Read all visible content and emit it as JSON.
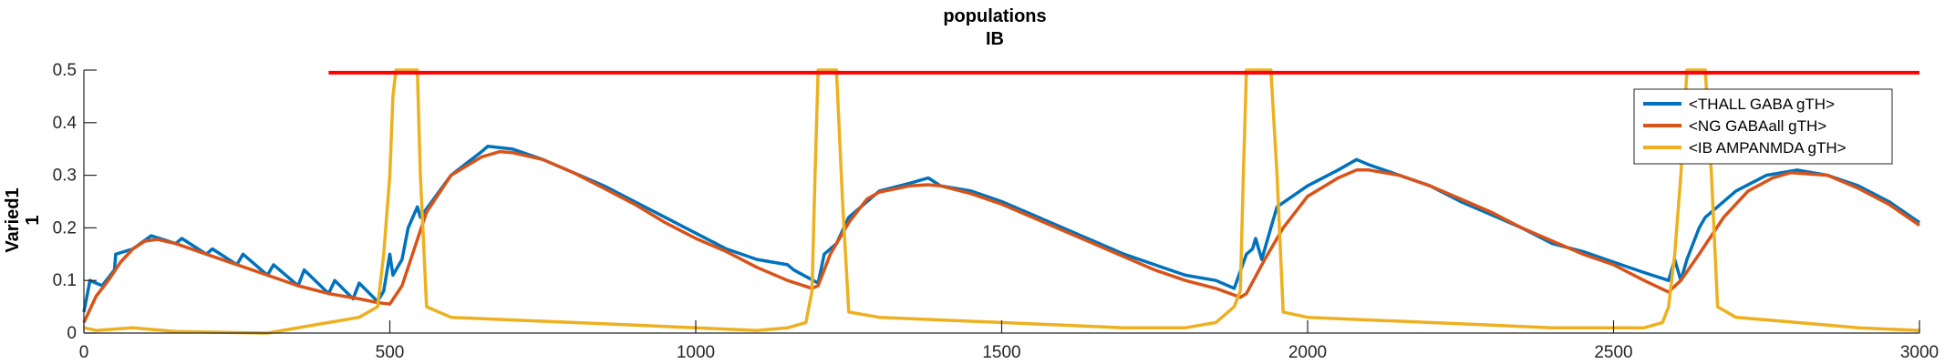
{
  "chart_data": {
    "type": "line",
    "title": "populations",
    "subtitle": "IB",
    "ylabel": [
      "Varied1",
      "1"
    ],
    "xlabel": "",
    "xlim": [
      0,
      3000
    ],
    "ylim": [
      0,
      0.5
    ],
    "xticks": [
      0,
      500,
      1000,
      1500,
      2000,
      2500,
      3000
    ],
    "yticks": [
      0,
      0.1,
      0.2,
      0.3,
      0.4,
      0.5
    ],
    "grid": false,
    "legend_position": "top-right",
    "series": [
      {
        "name": "<THALL GABA gTH>",
        "color": "#0072BD",
        "x": [
          0,
          10,
          30,
          50,
          52,
          80,
          110,
          150,
          160,
          200,
          210,
          250,
          260,
          300,
          310,
          350,
          360,
          400,
          410,
          440,
          450,
          480,
          490,
          500,
          505,
          520,
          530,
          545,
          550,
          600,
          650,
          660,
          700,
          750,
          800,
          850,
          900,
          950,
          1000,
          1050,
          1100,
          1150,
          1160,
          1200,
          1210,
          1230,
          1250,
          1300,
          1350,
          1380,
          1400,
          1450,
          1500,
          1550,
          1600,
          1650,
          1700,
          1750,
          1800,
          1850,
          1880,
          1900,
          1910,
          1915,
          1925,
          1940,
          1950,
          2000,
          2050,
          2080,
          2100,
          2150,
          2200,
          2250,
          2300,
          2350,
          2400,
          2450,
          2500,
          2550,
          2590,
          2600,
          2610,
          2620,
          2640,
          2650,
          2700,
          2750,
          2800,
          2850,
          2900,
          2950,
          3000
        ],
        "values": [
          0.04,
          0.1,
          0.09,
          0.12,
          0.15,
          0.16,
          0.185,
          0.17,
          0.18,
          0.15,
          0.16,
          0.13,
          0.15,
          0.11,
          0.13,
          0.09,
          0.12,
          0.075,
          0.1,
          0.065,
          0.095,
          0.06,
          0.08,
          0.15,
          0.11,
          0.14,
          0.2,
          0.24,
          0.22,
          0.3,
          0.345,
          0.355,
          0.35,
          0.33,
          0.305,
          0.28,
          0.25,
          0.22,
          0.19,
          0.16,
          0.14,
          0.13,
          0.12,
          0.095,
          0.15,
          0.17,
          0.22,
          0.27,
          0.285,
          0.295,
          0.28,
          0.27,
          0.25,
          0.225,
          0.2,
          0.175,
          0.15,
          0.13,
          0.11,
          0.1,
          0.085,
          0.15,
          0.16,
          0.18,
          0.14,
          0.2,
          0.24,
          0.28,
          0.31,
          0.33,
          0.32,
          0.3,
          0.28,
          0.25,
          0.225,
          0.2,
          0.17,
          0.155,
          0.135,
          0.115,
          0.1,
          0.14,
          0.1,
          0.14,
          0.2,
          0.22,
          0.27,
          0.3,
          0.31,
          0.3,
          0.28,
          0.25,
          0.21
        ]
      },
      {
        "name": "<NG GABAall gTH>",
        "color": "#D95319",
        "x": [
          0,
          20,
          40,
          60,
          80,
          100,
          120,
          150,
          200,
          250,
          300,
          350,
          400,
          450,
          480,
          500,
          520,
          540,
          560,
          600,
          650,
          680,
          700,
          750,
          800,
          850,
          900,
          950,
          1000,
          1050,
          1100,
          1150,
          1190,
          1200,
          1220,
          1250,
          1280,
          1300,
          1350,
          1380,
          1400,
          1450,
          1500,
          1550,
          1600,
          1650,
          1700,
          1750,
          1800,
          1850,
          1890,
          1900,
          1930,
          1960,
          2000,
          2050,
          2080,
          2100,
          2150,
          2200,
          2250,
          2300,
          2350,
          2400,
          2450,
          2500,
          2550,
          2590,
          2610,
          2640,
          2680,
          2720,
          2760,
          2790,
          2850,
          2900,
          2950,
          3000
        ],
        "values": [
          0.02,
          0.07,
          0.1,
          0.135,
          0.16,
          0.175,
          0.178,
          0.17,
          0.15,
          0.13,
          0.11,
          0.09,
          0.075,
          0.065,
          0.058,
          0.055,
          0.09,
          0.16,
          0.23,
          0.3,
          0.335,
          0.345,
          0.343,
          0.33,
          0.305,
          0.275,
          0.245,
          0.21,
          0.18,
          0.155,
          0.125,
          0.1,
          0.085,
          0.09,
          0.15,
          0.21,
          0.255,
          0.268,
          0.28,
          0.282,
          0.28,
          0.265,
          0.245,
          0.22,
          0.195,
          0.17,
          0.145,
          0.12,
          0.1,
          0.085,
          0.068,
          0.075,
          0.14,
          0.2,
          0.26,
          0.295,
          0.31,
          0.31,
          0.3,
          0.28,
          0.255,
          0.23,
          0.2,
          0.175,
          0.15,
          0.13,
          0.1,
          0.078,
          0.1,
          0.15,
          0.22,
          0.27,
          0.295,
          0.305,
          0.3,
          0.275,
          0.245,
          0.205
        ]
      },
      {
        "name": "<IB AMPANMDA gTH>",
        "color": "#EDB120",
        "x": [
          0,
          20,
          80,
          150,
          300,
          400,
          450,
          480,
          490,
          500,
          505,
          510,
          520,
          530,
          540,
          545,
          550,
          560,
          600,
          700,
          800,
          900,
          1000,
          1100,
          1150,
          1180,
          1190,
          1195,
          1200,
          1205,
          1210,
          1220,
          1230,
          1240,
          1250,
          1300,
          1400,
          1500,
          1600,
          1700,
          1800,
          1850,
          1880,
          1890,
          1895,
          1900,
          1905,
          1910,
          1920,
          1930,
          1940,
          1950,
          1960,
          2000,
          2100,
          2200,
          2300,
          2400,
          2500,
          2550,
          2580,
          2590,
          2600,
          2610,
          2620,
          2630,
          2640,
          2650,
          2660,
          2670,
          2700,
          2800,
          2900,
          3000
        ],
        "values": [
          0.01,
          0.005,
          0.01,
          0.003,
          0.0,
          0.02,
          0.03,
          0.05,
          0.15,
          0.3,
          0.45,
          0.5,
          0.5,
          0.5,
          0.5,
          0.5,
          0.3,
          0.05,
          0.03,
          0.025,
          0.02,
          0.015,
          0.01,
          0.005,
          0.01,
          0.02,
          0.08,
          0.3,
          0.5,
          0.5,
          0.5,
          0.5,
          0.5,
          0.25,
          0.04,
          0.03,
          0.025,
          0.02,
          0.015,
          0.01,
          0.01,
          0.02,
          0.05,
          0.08,
          0.3,
          0.5,
          0.5,
          0.5,
          0.5,
          0.5,
          0.5,
          0.3,
          0.04,
          0.03,
          0.025,
          0.02,
          0.015,
          0.01,
          0.01,
          0.01,
          0.02,
          0.05,
          0.15,
          0.3,
          0.5,
          0.5,
          0.5,
          0.5,
          0.3,
          0.05,
          0.03,
          0.02,
          0.01,
          0.005
        ]
      },
      {
        "name": "",
        "color": "#FF0000",
        "x": [
          400,
          3000
        ],
        "values": [
          0.495,
          0.495
        ]
      }
    ],
    "legend_series": [
      0,
      1,
      2
    ]
  }
}
